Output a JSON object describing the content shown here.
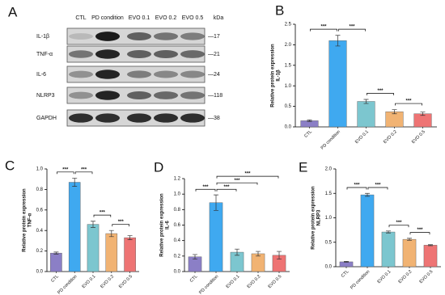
{
  "blot": {
    "panel": "A",
    "lanes": [
      "CTL",
      "PD condition",
      "EVO 0.1",
      "EVO 0.2",
      "EVO 0.5"
    ],
    "unit": "kDa",
    "rows": [
      {
        "name": "IL-1β",
        "kda": "—17"
      },
      {
        "name": "TNF-α",
        "kda": "—21"
      },
      {
        "name": "IL-6",
        "kda": "—24"
      },
      {
        "name": "NLRP3",
        "kda": "—118"
      },
      {
        "name": "GAPDH",
        "kda": "—38"
      }
    ]
  },
  "chart_data": [
    {
      "type": "bar",
      "panel": "B",
      "ylabel": [
        "Relative protein expression",
        "IL-1β"
      ],
      "categories": [
        "CTL",
        "PD condition",
        "EVO 0.1",
        "EVO 0.2",
        "EVO 0.5"
      ],
      "values": [
        0.15,
        2.1,
        0.62,
        0.37,
        0.32
      ],
      "errors": [
        0.02,
        0.13,
        0.05,
        0.05,
        0.04
      ],
      "colors": [
        "#8b7fc6",
        "#3fa9f0",
        "#7cc6cf",
        "#f1b373",
        "#ee7474"
      ],
      "ylim": [
        0,
        2.5
      ],
      "yticks": [
        {
          "value": 0,
          "label": "0.0"
        },
        0.5,
        {
          "value": 1,
          "label": "1.0"
        },
        1.5,
        {
          "value": 2,
          "label": "2.0"
        },
        2.5
      ],
      "comparisons": [
        {
          "pair": [
            "CTL",
            "PD condition"
          ],
          "label": "***"
        },
        {
          "pair": [
            "PD condition",
            "EVO 0.1"
          ],
          "label": "***"
        },
        {
          "pair": [
            "EVO 0.1",
            "EVO 0.2"
          ],
          "label": "***"
        },
        {
          "pair": [
            "EVO 0.2",
            "EVO 0.5"
          ],
          "label": "***"
        }
      ]
    },
    {
      "type": "bar",
      "panel": "C",
      "ylabel": [
        "Relative protein expression",
        "TNF-α"
      ],
      "categories": [
        "CTL",
        "PD condition",
        "EVO 0.1",
        "EVO 0.2",
        "EVO 0.5"
      ],
      "values": [
        0.18,
        0.87,
        0.46,
        0.37,
        0.33
      ],
      "errors": [
        0.01,
        0.04,
        0.03,
        0.03,
        0.02
      ],
      "colors": [
        "#8b7fc6",
        "#3fa9f0",
        "#7cc6cf",
        "#f1b373",
        "#ee7474"
      ],
      "ylim": [
        0,
        1
      ],
      "yticks": [
        {
          "value": 0,
          "label": "0.0"
        },
        0.2,
        0.4,
        0.6,
        0.8,
        {
          "value": 1,
          "label": "1.0"
        }
      ],
      "comparisons": [
        {
          "pair": [
            "CTL",
            "PD condition"
          ],
          "label": "***"
        },
        {
          "pair": [
            "PD condition",
            "EVO 0.1"
          ],
          "label": "***"
        },
        {
          "pair": [
            "EVO 0.1",
            "EVO 0.2"
          ],
          "label": "***"
        },
        {
          "pair": [
            "EVO 0.2",
            "EVO 0.5"
          ],
          "label": "***"
        }
      ]
    },
    {
      "type": "bar",
      "panel": "D",
      "ylabel": [
        "Relative protein expression",
        "IL-6"
      ],
      "categories": [
        "CTL",
        "PD condition",
        "EVO 0.1",
        "EVO 0.2",
        "EVO 0.5"
      ],
      "values": [
        0.19,
        0.89,
        0.25,
        0.23,
        0.21
      ],
      "errors": [
        0.03,
        0.1,
        0.04,
        0.03,
        0.05
      ],
      "colors": [
        "#8b7fc6",
        "#3fa9f0",
        "#7cc6cf",
        "#f1b373",
        "#ee7474"
      ],
      "ylim": [
        0,
        1.2
      ],
      "yticks": [
        {
          "value": 0,
          "label": "0.0"
        },
        0.2,
        0.4,
        0.6,
        0.8,
        {
          "value": 1,
          "label": "1.0"
        },
        1.2
      ],
      "comparisons": [
        {
          "pair": [
            "CTL",
            "PD condition"
          ],
          "label": "***"
        },
        {
          "pair": [
            "PD condition",
            "EVO 0.5"
          ],
          "label": "***"
        },
        {
          "pair": [
            "PD condition",
            "EVO 0.2"
          ],
          "label": "***"
        },
        {
          "pair": [
            "PD condition",
            "EVO 0.1"
          ],
          "label": "***"
        }
      ]
    },
    {
      "type": "bar",
      "panel": "E",
      "ylabel": [
        "Relative protein expression",
        "NLRP3"
      ],
      "categories": [
        "CTL",
        "PD condition",
        "EVO 0.1",
        "EVO 0.2",
        "EVO 0.5"
      ],
      "values": [
        0.1,
        1.47,
        0.71,
        0.56,
        0.44
      ],
      "errors": [
        0.01,
        0.03,
        0.02,
        0.02,
        0.01
      ],
      "colors": [
        "#8b7fc6",
        "#3fa9f0",
        "#7cc6cf",
        "#f1b373",
        "#ee7474"
      ],
      "ylim": [
        0,
        2
      ],
      "yticks": [
        {
          "value": 0,
          "label": "0.0"
        },
        0.5,
        {
          "value": 1,
          "label": "1.0"
        },
        1.5,
        {
          "value": 2,
          "label": "2.0"
        }
      ],
      "comparisons": [
        {
          "pair": [
            "CTL",
            "PD condition"
          ],
          "label": "***"
        },
        {
          "pair": [
            "PD condition",
            "EVO 0.1"
          ],
          "label": "***"
        },
        {
          "pair": [
            "EVO 0.1",
            "EVO 0.2"
          ],
          "label": "***"
        },
        {
          "pair": [
            "EVO 0.2",
            "EVO 0.5"
          ],
          "label": "***"
        }
      ]
    }
  ]
}
